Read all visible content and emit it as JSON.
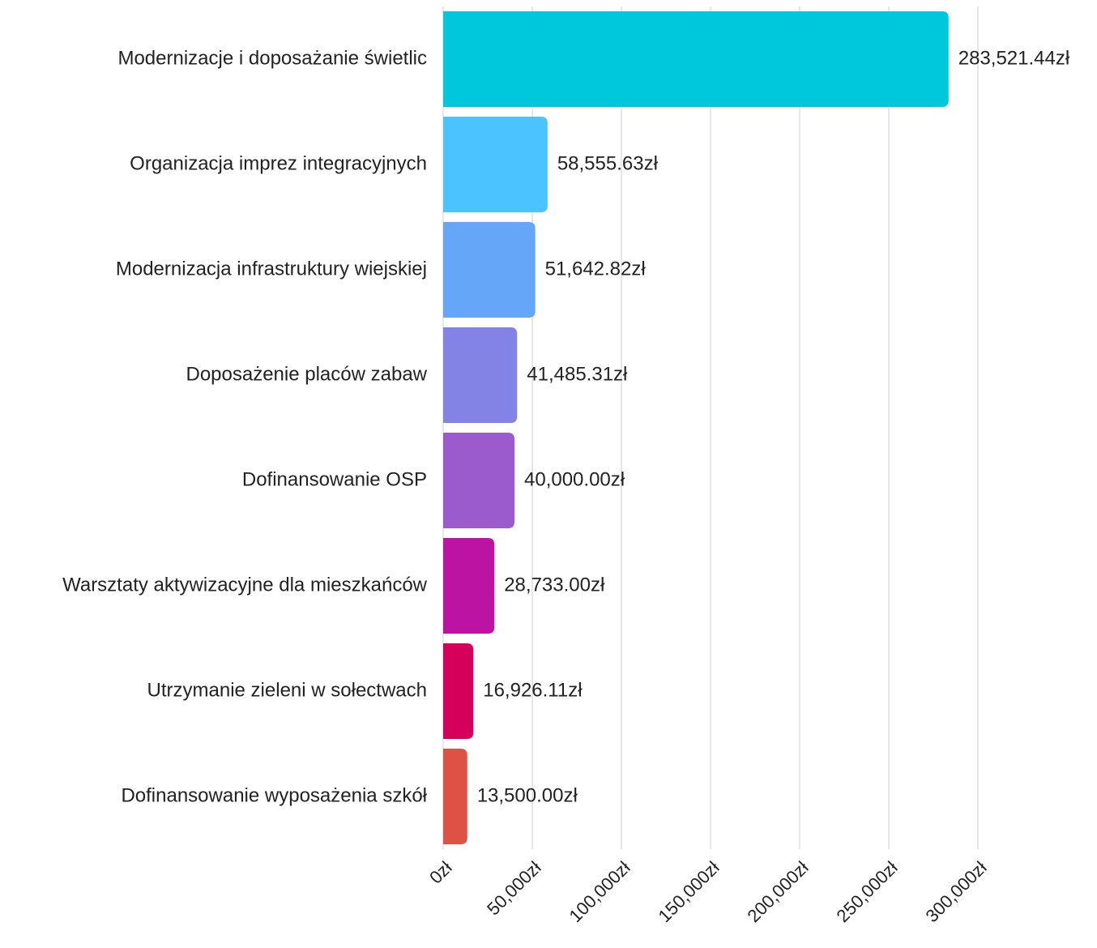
{
  "chart_data": {
    "type": "bar",
    "orientation": "horizontal",
    "categories": [
      "Modernizacje i doposażanie świetlic",
      "Organizacja imprez integracyjnych",
      "Modernizacja infrastruktury wiejskiej",
      "Doposażenie placów zabaw",
      "Dofinansowanie OSP",
      "Warsztaty aktywizacyjne dla mieszkańców",
      "Utrzymanie zieleni w sołectwach",
      "Dofinansowanie wyposażenia szkół"
    ],
    "values": [
      283521.44,
      58555.63,
      51642.82,
      41485.31,
      40000,
      28733,
      16926.11,
      13500
    ],
    "value_labels": [
      "283,521.44zł",
      "58,555.63zł",
      "51,642.82zł",
      "41,485.31zł",
      "40,000.00zł",
      "28,733.00zł",
      "16,926.11zł",
      "13,500.00zł"
    ],
    "colors": [
      "#00c8dc",
      "#4bc3ff",
      "#66a6f9",
      "#8383e6",
      "#9b5bcd",
      "#bd13a2",
      "#d5005a",
      "#de5246"
    ],
    "xlim": [
      0,
      300000
    ],
    "xticks": [
      {
        "value": 0,
        "label": "0zł"
      },
      {
        "value": 50000,
        "label": "50,000zł"
      },
      {
        "value": 100000,
        "label": "100,000zł"
      },
      {
        "value": 150000,
        "label": "150,000zł"
      },
      {
        "value": 200000,
        "label": "200,000zł"
      },
      {
        "value": 250000,
        "label": "250,000zł"
      },
      {
        "value": 300000,
        "label": "300,000zł"
      }
    ],
    "grid": true
  }
}
